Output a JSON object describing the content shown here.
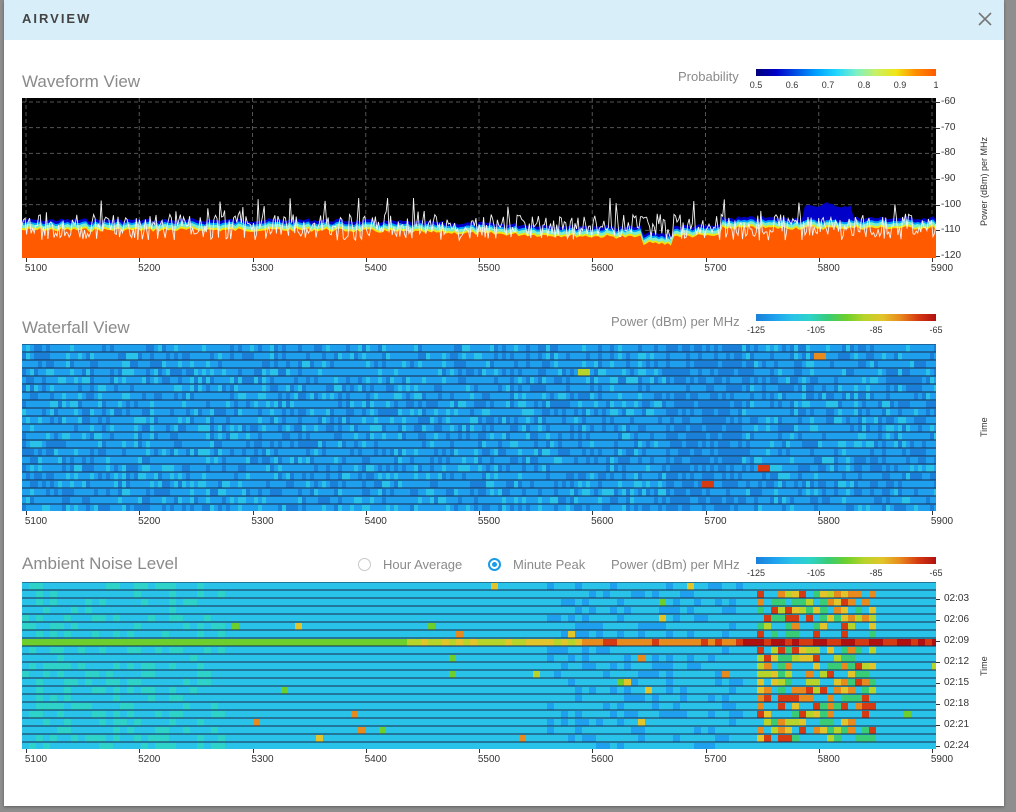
{
  "dialog": {
    "title": "AIRVIEW",
    "close_icon": "close-icon"
  },
  "waveform": {
    "title": "Waveform View",
    "legend_label": "Probability",
    "legend_ticks": [
      "0.5",
      "0.6",
      "0.7",
      "0.8",
      "0.9",
      "1"
    ],
    "y_ticks": [
      "-60",
      "-70",
      "-80",
      "-90",
      "-100",
      "-110",
      "-120"
    ],
    "y_title": "Power (dBm) per MHz",
    "x_ticks": [
      "5100",
      "5200",
      "5300",
      "5400",
      "5500",
      "5600",
      "5700",
      "5800",
      "5900"
    ]
  },
  "waterfall": {
    "title": "Waterfall View",
    "legend_label": "Power (dBm) per MHz",
    "legend_ticks": [
      "-125",
      "-105",
      "-85",
      "-65"
    ],
    "y_title": "Time",
    "x_ticks": [
      "5100",
      "5200",
      "5300",
      "5400",
      "5500",
      "5600",
      "5700",
      "5800",
      "5900"
    ]
  },
  "ambient": {
    "title": "Ambient Noise Level",
    "mode_options": [
      {
        "label": "Hour Average",
        "selected": false
      },
      {
        "label": "Minute Peak",
        "selected": true
      }
    ],
    "legend_label": "Power (dBm) per MHz",
    "legend_ticks": [
      "-125",
      "-105",
      "-85",
      "-65"
    ],
    "y_ticks": [
      "02:03",
      "02:06",
      "02:09",
      "02:12",
      "02:15",
      "02:18",
      "02:21",
      "02:24"
    ],
    "y_title": "Time",
    "x_ticks": [
      "5100",
      "5200",
      "5300",
      "5400",
      "5500",
      "5600",
      "5700",
      "5800",
      "5900"
    ]
  },
  "colors": {
    "title_bar": "#d8eef9",
    "accent": "#1a9be6",
    "waveform_fill": "#ff5a00",
    "probability_scale": [
      "#00007a",
      "#0000c8",
      "#0050e6",
      "#00a0ff",
      "#20d6ff",
      "#7bf0c8",
      "#c8f064",
      "#f0e614",
      "#ff8c00",
      "#ff5a00"
    ],
    "power_scale": [
      "#1a7fd9",
      "#1ea0ee",
      "#29c2e8",
      "#2dd3c8",
      "#38cc77",
      "#6ccf2e",
      "#b6d42a",
      "#e2c52a",
      "#e88b1e",
      "#d63a12",
      "#b01010"
    ]
  }
}
